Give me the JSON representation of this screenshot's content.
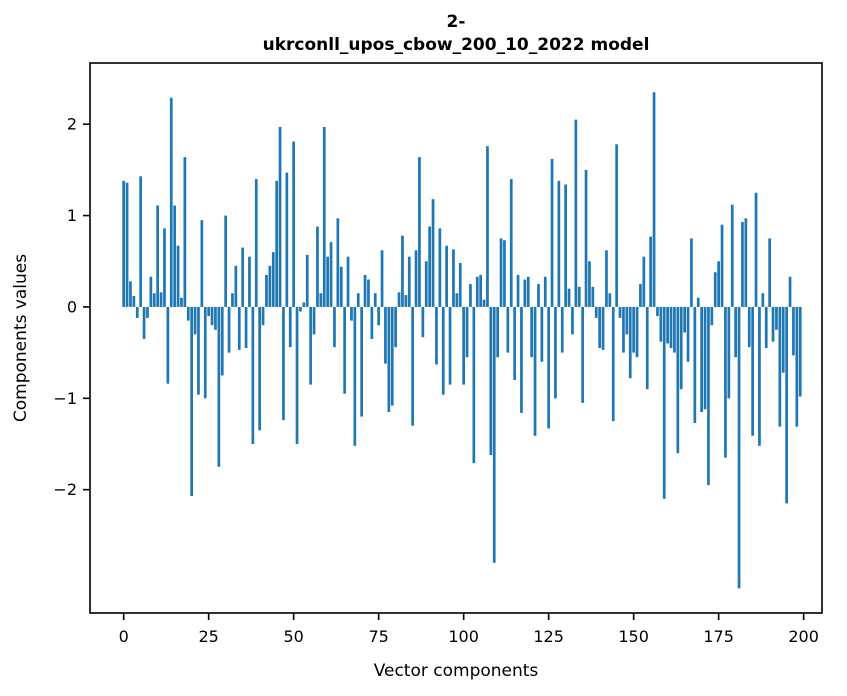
{
  "figure": {
    "title_line1": "2-",
    "title_line2": "ukrconll_upos_cbow_200_10_2022 model",
    "xlabel": "Vector components",
    "ylabel": "Components values"
  },
  "chart_data": {
    "type": "bar",
    "title": "2-\nukrconll_upos_cbow_200_10_2022 model",
    "xlabel": "Vector components",
    "ylabel": "Components values",
    "bar_color": "#1f77b4",
    "background_color": "#ffffff",
    "grid": false,
    "legend_position": "none",
    "x_is_index": true,
    "x_start": 0,
    "n_bars": 200,
    "xlim": [
      -9.9,
      205.4
    ],
    "ylim": [
      -3.35,
      2.67
    ],
    "xticks": [
      0,
      25,
      50,
      75,
      100,
      125,
      150,
      175,
      200
    ],
    "xtick_labels": [
      "0",
      "25",
      "50",
      "75",
      "100",
      "125",
      "150",
      "175",
      "200"
    ],
    "yticks": [
      2,
      1,
      0,
      -1,
      -2
    ],
    "ytick_labels": [
      "2",
      "1",
      "0",
      "−1",
      "−2"
    ],
    "values": [
      1.38,
      1.36,
      0.28,
      0.12,
      -0.12,
      1.43,
      -0.35,
      -0.12,
      0.33,
      0.15,
      1.11,
      0.16,
      0.86,
      -0.84,
      2.29,
      1.11,
      0.67,
      0.1,
      1.64,
      -0.15,
      -2.07,
      -0.3,
      -0.96,
      0.95,
      -1.0,
      -0.1,
      -0.2,
      -0.25,
      -1.75,
      -0.75,
      1.0,
      -0.5,
      0.15,
      0.45,
      -0.47,
      0.65,
      -0.45,
      0.55,
      -1.5,
      1.4,
      -1.35,
      -0.2,
      0.35,
      0.45,
      0.6,
      1.38,
      1.97,
      -1.24,
      1.47,
      -0.44,
      1.81,
      -1.5,
      -0.05,
      0.05,
      0.57,
      -0.85,
      -0.3,
      0.88,
      0.15,
      1.97,
      0.55,
      0.71,
      -0.44,
      0.97,
      0.44,
      -0.95,
      0.55,
      -0.15,
      -1.52,
      0.15,
      -1.2,
      0.35,
      0.3,
      -0.35,
      0.15,
      -0.2,
      0.62,
      -0.62,
      -1.15,
      -1.08,
      -0.44,
      0.16,
      0.78,
      0.13,
      0.55,
      -1.3,
      0.62,
      1.64,
      -0.33,
      0.5,
      0.88,
      1.18,
      -0.63,
      0.86,
      -0.96,
      0.67,
      -0.85,
      0.63,
      0.15,
      0.48,
      -0.85,
      -0.55,
      0.25,
      -1.71,
      0.33,
      0.35,
      0.08,
      1.76,
      -1.62,
      -2.8,
      -0.55,
      0.75,
      0.73,
      -0.5,
      1.4,
      -0.8,
      0.35,
      -1.16,
      0.3,
      0.33,
      -0.55,
      -1.41,
      0.25,
      -0.6,
      0.33,
      -1.33,
      1.62,
      -1.0,
      1.38,
      -0.5,
      1.34,
      0.2,
      -0.3,
      2.05,
      0.22,
      -1.05,
      1.5,
      0.5,
      0.22,
      -0.12,
      -0.45,
      -0.47,
      0.62,
      0.15,
      -1.25,
      1.78,
      -0.12,
      -0.5,
      -0.3,
      -0.78,
      -0.5,
      -0.55,
      0.25,
      0.55,
      -0.9,
      0.77,
      2.35,
      -0.1,
      -0.38,
      -2.1,
      -0.4,
      -0.45,
      -0.5,
      -1.6,
      -0.9,
      -0.28,
      -0.6,
      0.75,
      -1.27,
      0.1,
      -1.15,
      -1.12,
      -1.95,
      -0.2,
      0.38,
      0.5,
      0.9,
      -1.65,
      -1.0,
      1.12,
      -0.55,
      -3.08,
      0.93,
      0.97,
      -0.44,
      -1.41,
      1.25,
      -1.52,
      0.15,
      -0.45,
      0.75,
      -0.38,
      -0.25,
      -1.31,
      -0.72,
      -2.15,
      0.33,
      -0.53,
      -1.31,
      -0.98
    ]
  }
}
